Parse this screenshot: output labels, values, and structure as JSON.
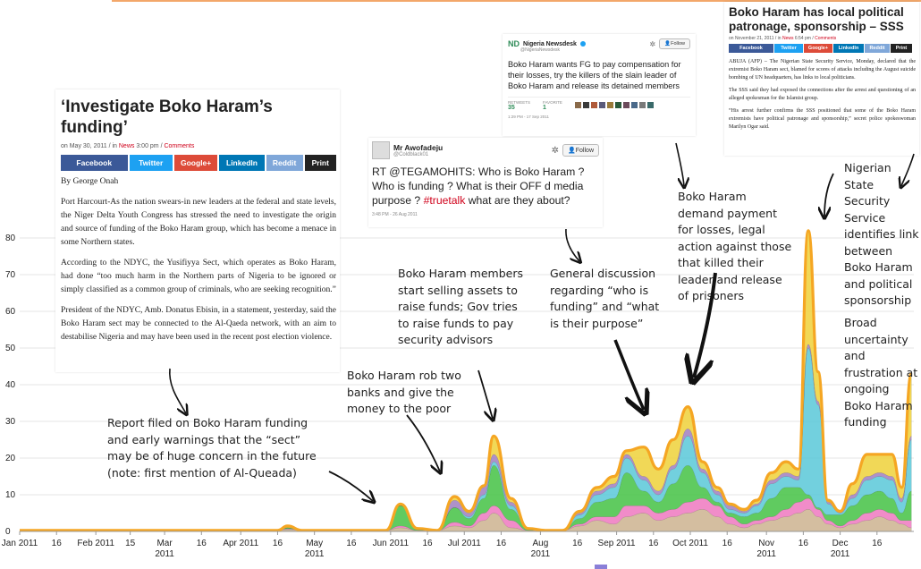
{
  "chart_data": {
    "type": "area",
    "stacked": true,
    "ylim": [
      0,
      80
    ],
    "yticks": [
      0,
      10,
      20,
      30,
      40,
      50,
      60,
      70,
      80
    ],
    "x_range": [
      "2011-01-01",
      "2011-12-31"
    ],
    "x_ticks": [
      {
        "label": "Jan 2011",
        "date": "2011-01-01"
      },
      {
        "label": "16",
        "date": "2011-01-16"
      },
      {
        "label": "Feb 2011",
        "date": "2011-02-01"
      },
      {
        "label": "15",
        "date": "2011-02-15"
      },
      {
        "label": "Mar",
        "sub": "2011",
        "date": "2011-03-01"
      },
      {
        "label": "16",
        "date": "2011-03-16"
      },
      {
        "label": "Apr 2011",
        "date": "2011-04-01"
      },
      {
        "label": "16",
        "date": "2011-04-16"
      },
      {
        "label": "May",
        "sub": "2011",
        "date": "2011-05-01"
      },
      {
        "label": "16",
        "date": "2011-05-16"
      },
      {
        "label": "Jun 2011",
        "date": "2011-06-01"
      },
      {
        "label": "16",
        "date": "2011-06-16"
      },
      {
        "label": "Jul 2011",
        "date": "2011-07-01"
      },
      {
        "label": "16",
        "date": "2011-07-16"
      },
      {
        "label": "Aug",
        "sub": "2011",
        "date": "2011-08-01"
      },
      {
        "label": "16",
        "date": "2011-08-16"
      },
      {
        "label": "Sep 2011",
        "date": "2011-09-01"
      },
      {
        "label": "16",
        "date": "2011-09-16"
      },
      {
        "label": "Oct 2011",
        "date": "2011-10-01"
      },
      {
        "label": "16",
        "date": "2011-10-16"
      },
      {
        "label": "Nov",
        "sub": "2011",
        "date": "2011-11-01"
      },
      {
        "label": "16",
        "date": "2011-11-16"
      },
      {
        "label": "Dec",
        "sub": "2011",
        "date": "2011-12-01"
      },
      {
        "label": "16",
        "date": "2011-12-16"
      }
    ],
    "dates": [
      "2011-01-01",
      "2011-01-16",
      "2011-02-01",
      "2011-02-15",
      "2011-03-01",
      "2011-03-16",
      "2011-04-01",
      "2011-04-16",
      "2011-04-20",
      "2011-04-26",
      "2011-05-01",
      "2011-05-16",
      "2011-05-22",
      "2011-05-30",
      "2011-06-05",
      "2011-06-12",
      "2011-06-20",
      "2011-06-27",
      "2011-07-03",
      "2011-07-09",
      "2011-07-13",
      "2011-07-20",
      "2011-07-27",
      "2011-08-03",
      "2011-08-10",
      "2011-08-17",
      "2011-08-24",
      "2011-08-31",
      "2011-09-05",
      "2011-09-12",
      "2011-09-18",
      "2011-09-24",
      "2011-09-30",
      "2011-10-06",
      "2011-10-12",
      "2011-10-17",
      "2011-10-23",
      "2011-10-28",
      "2011-11-03",
      "2011-11-09",
      "2011-11-14",
      "2011-11-18",
      "2011-11-22",
      "2011-11-26",
      "2011-12-01",
      "2011-12-06",
      "2011-12-12",
      "2011-12-17",
      "2011-12-22",
      "2011-12-26",
      "2011-12-30"
    ],
    "series": [
      {
        "color": "#cdb38f",
        "values": [
          0.3,
          0.3,
          0.3,
          0.3,
          0.3,
          0.3,
          0.3,
          0.3,
          0.5,
          0.3,
          0.3,
          0.3,
          0.3,
          0.3,
          1,
          0.3,
          0.3,
          1.5,
          1,
          3,
          5,
          1,
          0.3,
          0.3,
          0.3,
          1.5,
          3,
          2,
          4,
          5,
          3,
          4,
          5,
          6,
          4,
          2,
          1,
          2,
          3,
          4,
          5,
          6,
          4,
          2,
          1,
          2,
          3,
          4,
          3,
          2,
          1
        ]
      },
      {
        "color": "#ee78c0",
        "values": [
          0,
          0,
          0,
          0,
          0,
          0,
          0,
          0,
          0.2,
          0,
          0,
          0,
          0,
          0,
          0.5,
          0,
          0,
          1,
          0.5,
          2,
          2,
          2,
          0,
          0,
          0,
          0.5,
          1,
          2,
          3,
          2,
          2,
          2,
          3,
          3,
          3,
          2,
          1,
          1,
          1,
          2,
          3,
          3,
          2,
          1,
          0.5,
          1,
          2,
          2,
          2,
          1,
          2
        ]
      },
      {
        "color": "#44c244",
        "values": [
          0,
          0,
          0,
          0,
          0,
          0,
          0,
          0,
          0.3,
          0,
          0,
          0,
          0,
          0,
          5.5,
          0.5,
          0,
          4,
          2,
          4,
          11,
          3,
          0.5,
          0,
          0,
          1.5,
          4,
          5,
          9,
          4,
          3,
          7,
          10,
          3,
          1,
          1,
          2,
          2,
          5,
          6,
          4,
          1,
          0.5,
          1.5,
          3,
          4,
          5,
          5,
          4,
          2,
          8
        ]
      },
      {
        "color": "#59c8d8",
        "values": [
          0,
          0,
          0,
          0,
          0,
          0,
          0,
          0,
          0,
          0,
          0,
          0,
          0,
          0,
          0,
          0,
          0,
          0,
          0.5,
          1,
          1,
          1,
          0,
          0,
          0,
          1,
          2,
          3,
          4,
          3,
          2,
          4,
          8,
          4,
          2,
          1,
          1,
          2,
          4,
          3,
          2,
          40,
          28,
          3,
          0.5,
          2,
          4,
          4,
          5,
          3,
          14
        ]
      },
      {
        "color": "#a07ec0",
        "values": [
          0,
          0,
          0,
          0,
          0,
          0,
          0,
          0,
          0,
          0,
          0,
          0,
          0,
          0,
          0,
          0,
          0,
          2,
          1,
          2,
          2,
          1,
          0,
          0,
          0,
          0.5,
          1,
          1,
          1,
          1,
          1,
          1,
          2,
          1,
          1,
          1,
          0.5,
          0.5,
          1,
          1,
          1,
          1,
          1,
          0.5,
          0.3,
          1,
          1,
          1,
          1,
          1,
          1
        ]
      },
      {
        "color": "#efd13a",
        "values": [
          0,
          0,
          0,
          0,
          0,
          0,
          0,
          0,
          0.5,
          0,
          0,
          0,
          0,
          0,
          0.5,
          0,
          0,
          1,
          0.5,
          0.5,
          5,
          1,
          0,
          0,
          0,
          0.5,
          1,
          2,
          1,
          8,
          6,
          7,
          6,
          2,
          1,
          0.5,
          0.5,
          1,
          2,
          3,
          2,
          31,
          8,
          0.5,
          0.2,
          3,
          6,
          5,
          6,
          3,
          17
        ]
      }
    ]
  },
  "articles": {
    "main": {
      "title": "‘Investigate Boko Haram’s funding’",
      "meta_date": "on May 30, 2011  /  in",
      "meta_cat": "News",
      "meta_time": "3:00 pm  /",
      "meta_comments": "Comments",
      "share": [
        "Facebook",
        "Twitter",
        "Google+",
        "LinkedIn",
        "Reddit",
        "Print"
      ],
      "byline": "By George Onah",
      "paragraphs": [
        "Port Harcourt-As the nation swears-in new leaders at the federal and state levels, the Niger Delta Youth Congress has stressed the need to investigate the origin and source of funding of the Boko Haram group, which has become a menace in some Northern states.",
        "According to the NDYC, the Yusifiyya Sect, which operates as Boko Haram, had done “too much harm in the Northern parts of Nigeria to be ignored or simply classified as a common group of criminals, who are seeking recognition.”",
        "President of the NDYC, Amb. Donatus Ebisin, in a statement, yesterday, said the Boko Haram sect may be connected to the Al-Qaeda network, with an aim to destabilise Nigeria and may have been used in the recent post election violence."
      ]
    },
    "sss": {
      "title": "Boko Haram has local political patronage, sponsorship – SSS",
      "meta_date": "on November 21, 2011  /  in",
      "meta_cat": "News",
      "meta_time": "6:54 pm  /",
      "meta_comments": "Comments",
      "share": [
        "Facebook",
        "Twitter",
        "Google+",
        "LinkedIn",
        "Reddit",
        "Print"
      ],
      "paragraphs": [
        "ABUJA (AFP) – The Nigerian State Security Service, Monday, declared that the extremist Boko Haram sect, blamed for scores of attacks including the August suicide bombing of UN headquarters, has links to local politicians.",
        "The SSS said they had exposed the connections after the arrest and questioning of an alleged spokesman for the Islamist group.",
        "“His arrest further confirms the SSS positioned that some of the Boko Haram extremists have political patronage and sponsorship,” secret police spokeswoman Marilyn Ogar said."
      ]
    }
  },
  "tweets": {
    "newsdesk": {
      "logo": "ND",
      "name": "Nigeria Newsdesk",
      "handle": "@NigeriaNewsdesk",
      "follow": "Follow",
      "text": "Boko Haram wants FG to pay compensation for their losses, try the killers of the slain leader of Boko Haram and release its detained members",
      "retweets_label": "RETWEETS",
      "retweets": "35",
      "favorites_label": "FAVORITE",
      "favorites": "1",
      "time": "1:29 PM - 17 Sep 2011"
    },
    "awofadeju": {
      "name": "Mr Awofadeju",
      "handle": "@Coldblack01",
      "follow": "Follow",
      "text_before": "RT @TEGAMOHITS: Who is Boko Haram ? Who is funding ? What is their OFF d media purpose ? ",
      "hashtag": "#truetalk",
      "text_after": " what are they about?",
      "time": "3:48 PM - 26 Aug 2011"
    }
  },
  "annotations": {
    "report": "Report filed on Boko Haram funding and early warnings that the “sect” may be of huge concern in the future (note: first mention of Al-Queada)",
    "rob": "Boko Haram rob two banks and give the money to the poor",
    "members": "Boko Haram members start selling assets to raise funds; Gov tries to raise funds to pay security advisors",
    "general": "General discussion regarding “who is funding” and “what is their purpose”",
    "demand": "Boko Haram demand payment for losses, legal action against those that killed their leader and release of prisoners",
    "nss": "Nigerian State Security Service identifies link between Boko Haram and political sponsorship",
    "broad": "Broad uncertainty and frustration at ongoing Boko Haram funding"
  },
  "colors": {
    "outline": "#f5a623",
    "red_accent": "#d0021b",
    "facebook": "#3b5998",
    "twitter": "#1da1f2",
    "google": "#dd4b39",
    "linkedin": "#0077b5",
    "reddit": "#7fa7d9",
    "print": "#222222"
  }
}
